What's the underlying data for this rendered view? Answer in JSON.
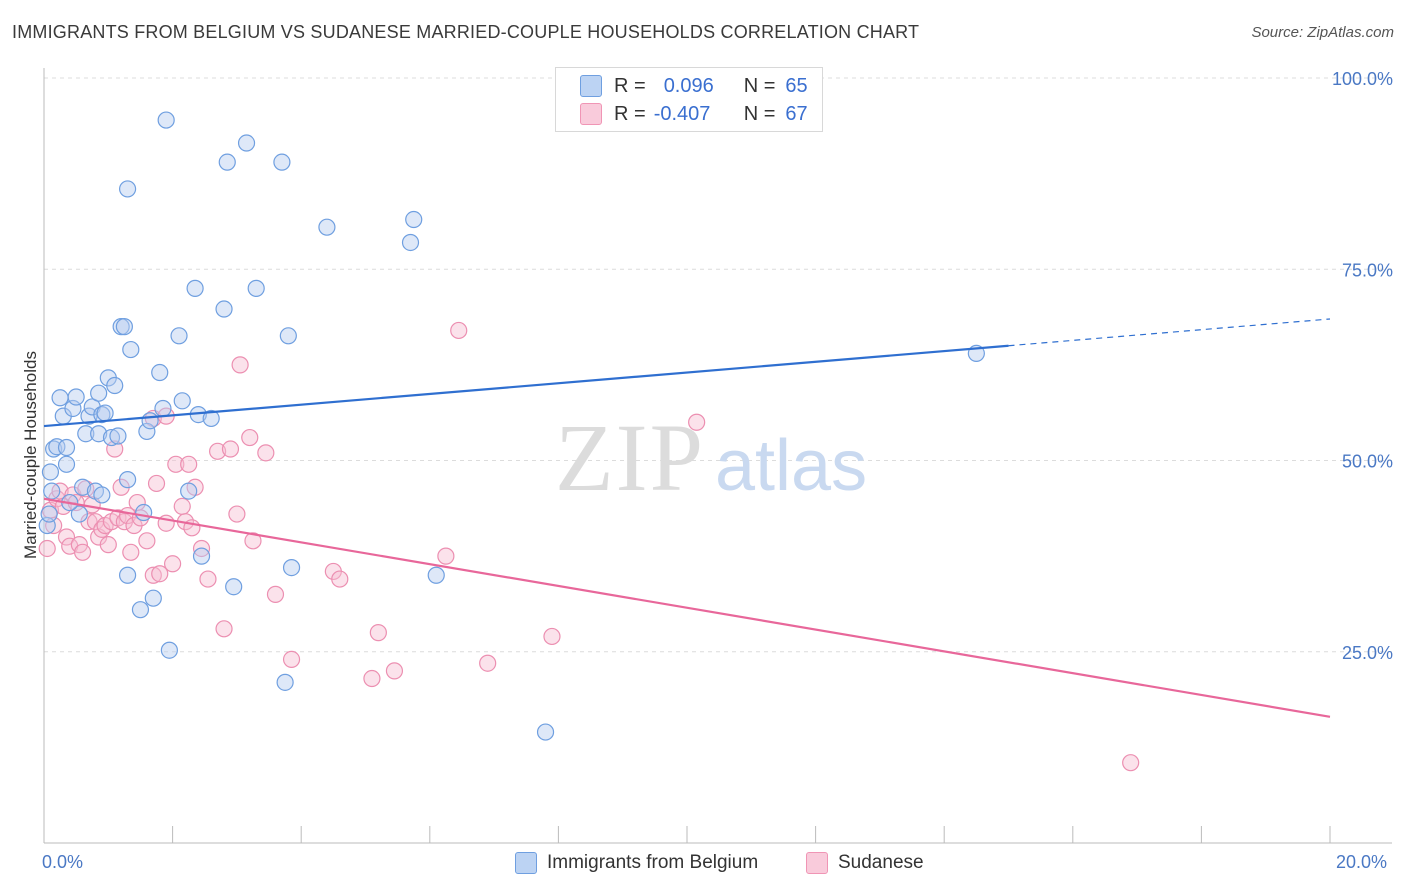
{
  "title": "IMMIGRANTS FROM BELGIUM VS SUDANESE MARRIED-COUPLE HOUSEHOLDS CORRELATION CHART",
  "source": "Source: ZipAtlas.com",
  "watermark": {
    "zip": "ZIP",
    "atlas": "atlas"
  },
  "legend": {
    "rows": [
      {
        "r_label": "R =",
        "r_value": "0.096",
        "n_label": "N =",
        "n_value": "65"
      },
      {
        "r_label": "R =",
        "r_value": "-0.407",
        "n_label": "N =",
        "n_value": "67"
      }
    ]
  },
  "bottom_legend": {
    "series1": "Immigrants from Belgium",
    "series2": "Sudanese"
  },
  "x_axis": {
    "min_label": "0.0%",
    "max_label": "20.0%"
  },
  "colors": {
    "blue": "#6f9fe0",
    "blue_line": "#2f6fd0",
    "pink": "#f095b5",
    "pink_line": "#e8679a",
    "grid": "#dddddd",
    "tick": "#4a78c4"
  },
  "chart_data": {
    "type": "scatter",
    "title": "IMMIGRANTS FROM BELGIUM VS SUDANESE MARRIED-COUPLE HOUSEHOLDS CORRELATION CHART",
    "xlabel": "",
    "ylabel": "Married-couple Households",
    "xlim": [
      0,
      20
    ],
    "ylim": [
      0,
      105
    ],
    "y_ticks": [
      25,
      50,
      75,
      100
    ],
    "y_tick_labels": [
      "25.0%",
      "50.0%",
      "75.0%",
      "100.0%"
    ],
    "grid": true,
    "legend_position": "top-center",
    "series": [
      {
        "name": "Immigrants from Belgium",
        "color": "#6f9fe0",
        "trend": {
          "x": [
            0,
            15
          ],
          "y": [
            54.5,
            65.0
          ],
          "dashed_to": [
            20,
            68.5
          ]
        },
        "points": [
          [
            0.1,
            48.5
          ],
          [
            0.15,
            51.5
          ],
          [
            0.2,
            51.8
          ],
          [
            0.25,
            58.2
          ],
          [
            0.3,
            55.8
          ],
          [
            0.35,
            49.5
          ],
          [
            0.35,
            51.7
          ],
          [
            0.45,
            56.8
          ],
          [
            0.5,
            58.3
          ],
          [
            0.55,
            43.0
          ],
          [
            0.6,
            46.5
          ],
          [
            0.65,
            53.5
          ],
          [
            0.7,
            55.8
          ],
          [
            0.75,
            57.0
          ],
          [
            0.8,
            46.0
          ],
          [
            0.85,
            58.8
          ],
          [
            0.9,
            45.5
          ],
          [
            0.85,
            53.5
          ],
          [
            0.9,
            56.0
          ],
          [
            0.95,
            56.2
          ],
          [
            1.0,
            60.8
          ],
          [
            1.05,
            53.0
          ],
          [
            1.1,
            59.8
          ],
          [
            1.15,
            53.2
          ],
          [
            1.2,
            67.5
          ],
          [
            1.25,
            67.5
          ],
          [
            1.3,
            35.0
          ],
          [
            1.3,
            85.5
          ],
          [
            1.3,
            47.5
          ],
          [
            1.35,
            64.5
          ],
          [
            1.5,
            30.5
          ],
          [
            1.55,
            43.2
          ],
          [
            1.6,
            53.8
          ],
          [
            1.65,
            55.2
          ],
          [
            1.7,
            32.0
          ],
          [
            1.8,
            61.5
          ],
          [
            1.85,
            56.8
          ],
          [
            1.9,
            94.5
          ],
          [
            1.95,
            25.2
          ],
          [
            2.1,
            66.3
          ],
          [
            2.15,
            57.8
          ],
          [
            2.25,
            46.0
          ],
          [
            2.35,
            72.5
          ],
          [
            2.4,
            56.0
          ],
          [
            2.45,
            37.5
          ],
          [
            2.6,
            55.5
          ],
          [
            2.8,
            69.8
          ],
          [
            2.85,
            89.0
          ],
          [
            2.95,
            33.5
          ],
          [
            3.15,
            91.5
          ],
          [
            3.3,
            72.5
          ],
          [
            3.7,
            89.0
          ],
          [
            3.75,
            21.0
          ],
          [
            3.8,
            66.3
          ],
          [
            3.85,
            36.0
          ],
          [
            4.4,
            80.5
          ],
          [
            5.7,
            78.5
          ],
          [
            5.75,
            81.5
          ],
          [
            6.1,
            35.0
          ],
          [
            7.8,
            14.5
          ],
          [
            14.5,
            64.0
          ],
          [
            0.05,
            41.5
          ],
          [
            0.08,
            43.0
          ],
          [
            0.12,
            46.0
          ],
          [
            0.4,
            44.5
          ]
        ]
      },
      {
        "name": "Sudanese",
        "color": "#f095b5",
        "trend": {
          "x": [
            0,
            20
          ],
          "y": [
            45.0,
            16.5
          ]
        },
        "points": [
          [
            0.05,
            38.5
          ],
          [
            0.1,
            43.5
          ],
          [
            0.15,
            41.5
          ],
          [
            0.2,
            45.0
          ],
          [
            0.25,
            46.0
          ],
          [
            0.3,
            44.0
          ],
          [
            0.35,
            40.0
          ],
          [
            0.4,
            38.8
          ],
          [
            0.45,
            45.5
          ],
          [
            0.5,
            44.5
          ],
          [
            0.55,
            39.0
          ],
          [
            0.6,
            38.0
          ],
          [
            0.7,
            42.0
          ],
          [
            0.75,
            44.2
          ],
          [
            0.8,
            42.0
          ],
          [
            0.85,
            40.0
          ],
          [
            0.9,
            41.0
          ],
          [
            0.95,
            41.5
          ],
          [
            1.0,
            39.0
          ],
          [
            1.05,
            42.0
          ],
          [
            1.1,
            51.5
          ],
          [
            1.15,
            42.5
          ],
          [
            1.2,
            46.5
          ],
          [
            1.25,
            42.0
          ],
          [
            1.3,
            42.8
          ],
          [
            1.35,
            38.0
          ],
          [
            1.4,
            41.5
          ],
          [
            1.45,
            44.5
          ],
          [
            1.5,
            42.5
          ],
          [
            1.6,
            39.5
          ],
          [
            1.7,
            55.5
          ],
          [
            1.7,
            35.0
          ],
          [
            1.75,
            47.0
          ],
          [
            1.8,
            35.2
          ],
          [
            1.9,
            41.8
          ],
          [
            2.0,
            36.5
          ],
          [
            2.05,
            49.5
          ],
          [
            2.15,
            44.0
          ],
          [
            2.2,
            42.0
          ],
          [
            2.25,
            49.5
          ],
          [
            2.35,
            46.5
          ],
          [
            2.45,
            38.5
          ],
          [
            2.55,
            34.5
          ],
          [
            2.7,
            51.2
          ],
          [
            2.8,
            28.0
          ],
          [
            2.9,
            51.5
          ],
          [
            3.0,
            43.0
          ],
          [
            3.05,
            62.5
          ],
          [
            3.2,
            53.0
          ],
          [
            3.25,
            39.5
          ],
          [
            3.45,
            51.0
          ],
          [
            3.6,
            32.5
          ],
          [
            3.85,
            24.0
          ],
          [
            4.5,
            35.5
          ],
          [
            4.6,
            34.5
          ],
          [
            5.1,
            21.5
          ],
          [
            5.2,
            27.5
          ],
          [
            5.45,
            22.5
          ],
          [
            6.25,
            37.5
          ],
          [
            6.45,
            67.0
          ],
          [
            6.9,
            23.5
          ],
          [
            7.9,
            27.0
          ],
          [
            10.15,
            55.0
          ],
          [
            16.9,
            10.5
          ],
          [
            1.9,
            55.8
          ],
          [
            2.3,
            41.2
          ],
          [
            0.65,
            46.3
          ]
        ]
      }
    ]
  }
}
